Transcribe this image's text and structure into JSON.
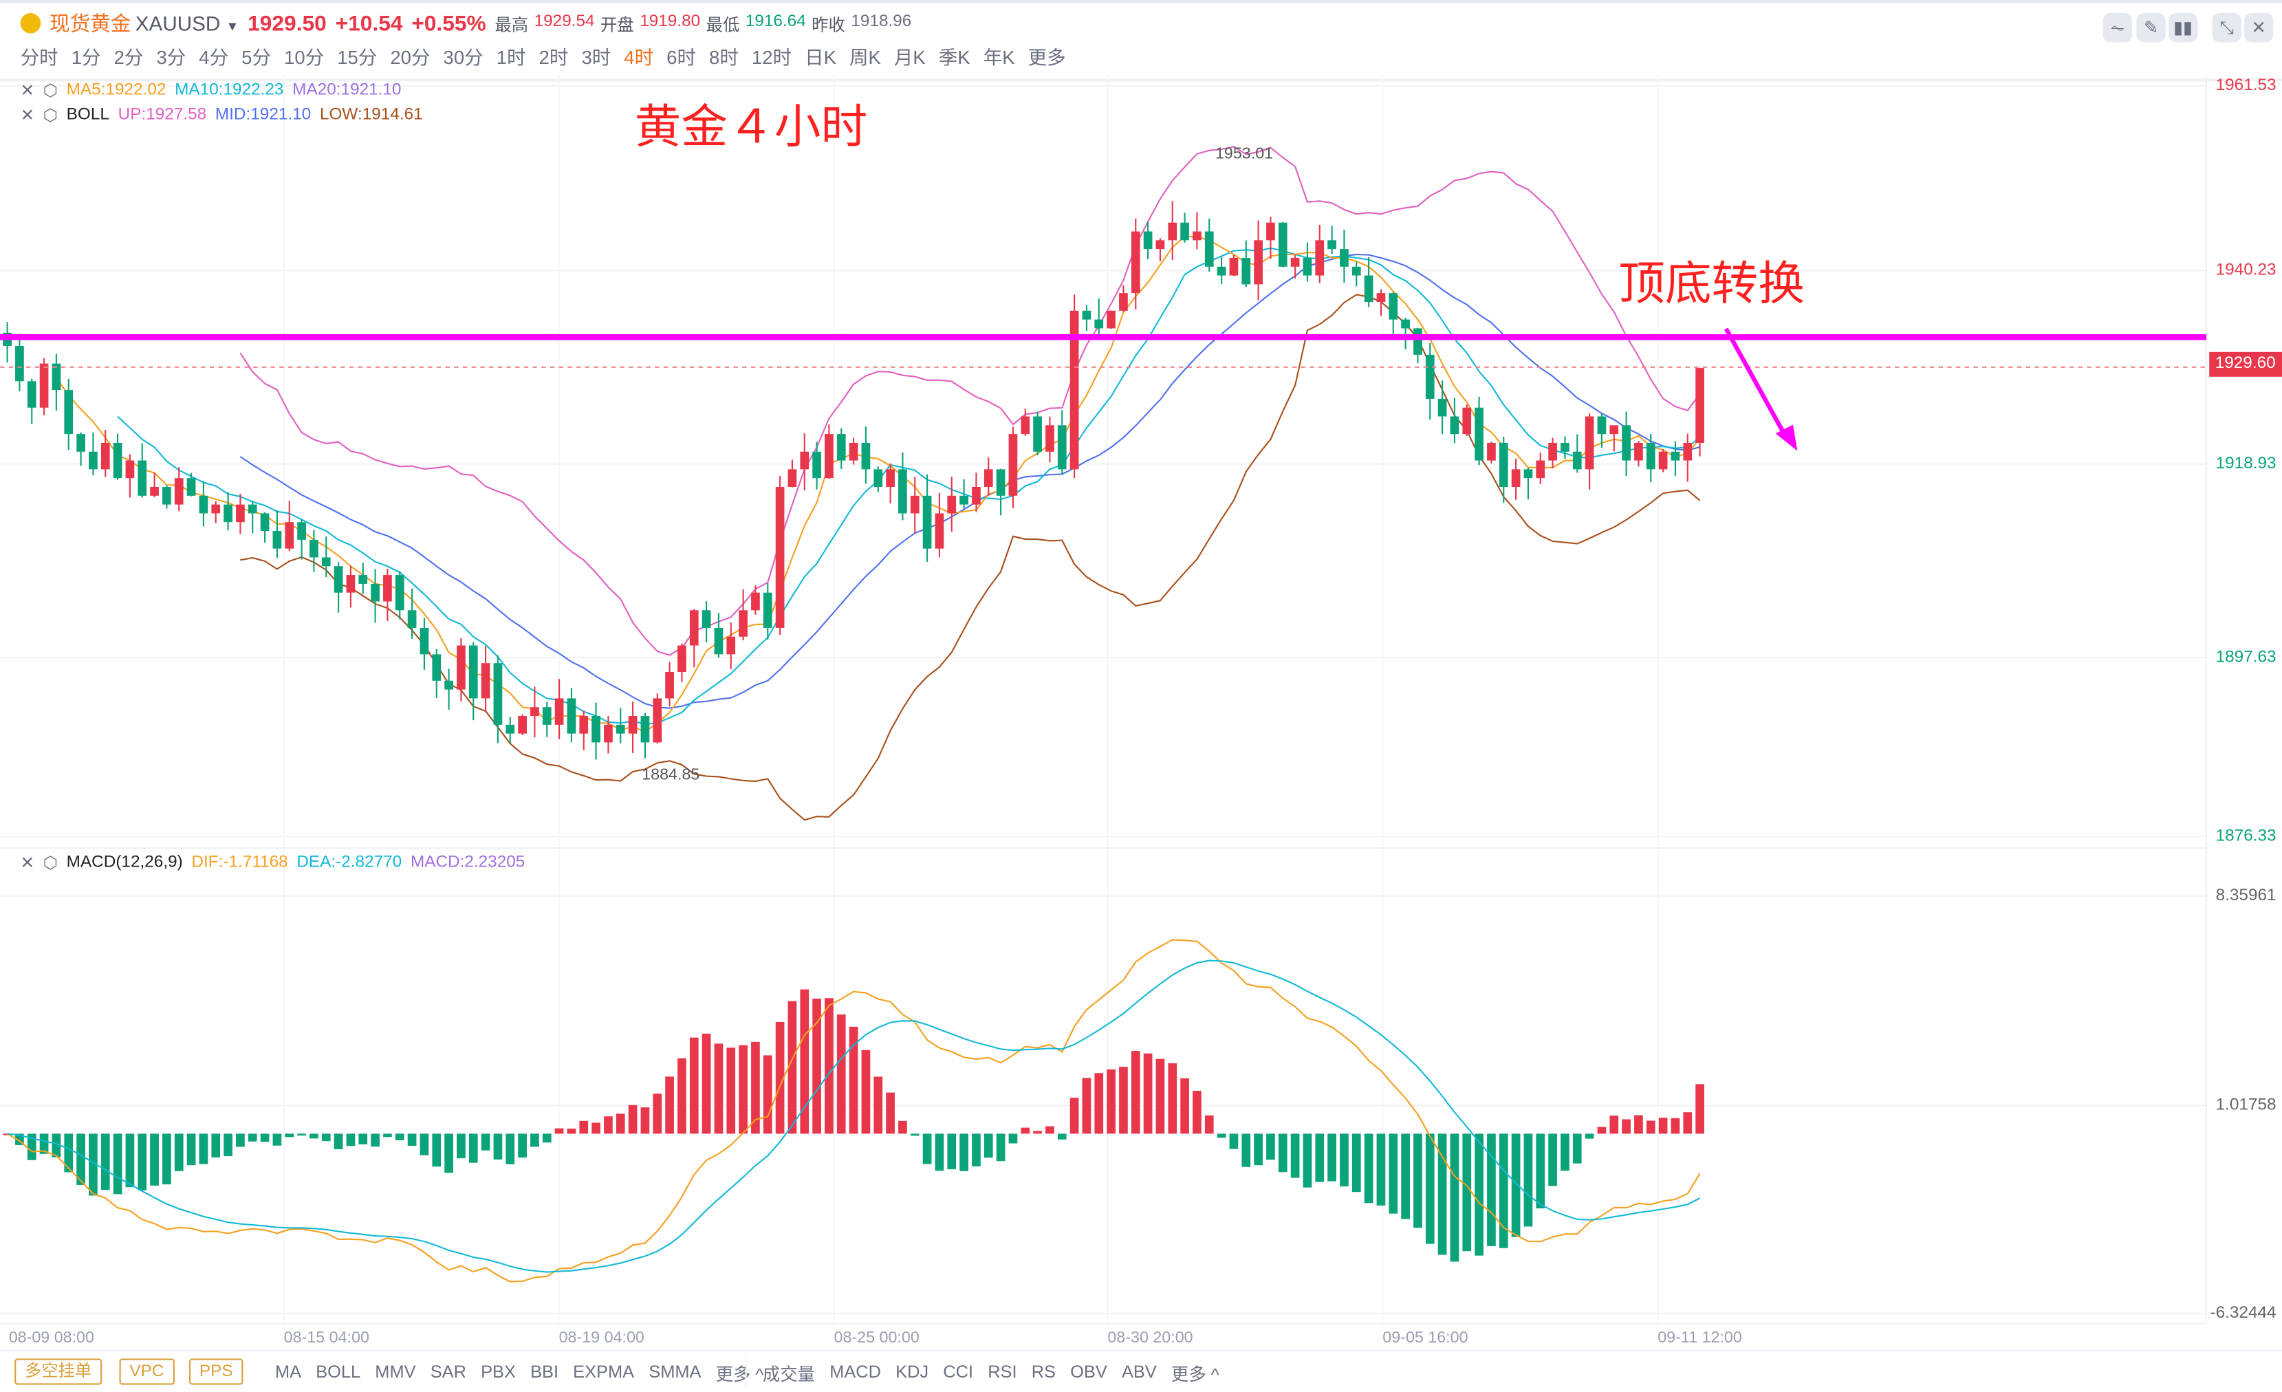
{
  "header": {
    "name": "现货黄金",
    "symbol": "XAUUSD",
    "price": "1929.50",
    "change": "+10.54",
    "change_pct": "+0.55%",
    "stats": [
      {
        "label": "最高",
        "value": "1929.54",
        "color": "#e8374a"
      },
      {
        "label": "开盘",
        "value": "1919.80",
        "color": "#e8374a"
      },
      {
        "label": "最低",
        "value": "1916.64",
        "color": "#0aa37a"
      },
      {
        "label": "昨收",
        "value": "1918.96",
        "color": "#6b7080"
      }
    ]
  },
  "timeframes": [
    "分时",
    "1分",
    "2分",
    "3分",
    "4分",
    "5分",
    "10分",
    "15分",
    "20分",
    "30分",
    "1时",
    "2时",
    "3时",
    "4时",
    "6时",
    "8时",
    "12时",
    "日K",
    "周K",
    "月K",
    "季K",
    "年K",
    "更多"
  ],
  "active_timeframe": "4时",
  "toolbar_icons": [
    "indicator-line-icon",
    "pencil-icon",
    "candlestick-icon",
    "collapse-icon",
    "close-icon"
  ],
  "legend": {
    "ma": [
      {
        "t": "MA5:1922.02",
        "c": "#f5a020"
      },
      {
        "t": "MA10:1922.23",
        "c": "#12b9d6"
      },
      {
        "t": "MA20:1921.10",
        "c": "#a070e0"
      }
    ],
    "boll_label": "BOLL",
    "boll": [
      {
        "t": "UP:1927.58",
        "c": "#e060c0"
      },
      {
        "t": "MID:1921.10",
        "c": "#5070f0"
      },
      {
        "t": "LOW:1914.61",
        "c": "#a8501c"
      }
    ],
    "macd_label": "MACD(12,26,9)",
    "macd": [
      {
        "t": "DIF:-1.71168",
        "c": "#f5a020"
      },
      {
        "t": "DEA:-2.82770",
        "c": "#12b9d6"
      },
      {
        "t": "MACD:2.23205",
        "c": "#a070e0"
      }
    ]
  },
  "annotations": {
    "title": "黄金４小时",
    "note": "顶底转换",
    "high_mark": "1953.01",
    "low_mark": "1884.85",
    "line_color": "#ff00ff"
  },
  "price_axis": [
    "1961.53",
    "1940.23",
    "1918.93",
    "1897.63",
    "1876.33"
  ],
  "current_price_label": "1929.60",
  "macd_axis": [
    "8.35961",
    "1.01758",
    "-6.32444"
  ],
  "time_axis": [
    "08-09 08:00",
    "08-15 04:00",
    "08-19 04:00",
    "08-25 00:00",
    "08-30 20:00",
    "09-05 16:00",
    "09-11 12:00"
  ],
  "footer": {
    "order_buttons": [
      "多空挂单",
      "VPC",
      "PPS"
    ],
    "main_indicators": [
      "MA",
      "BOLL",
      "MMV",
      "SAR",
      "PBX",
      "BBI",
      "EXPMA",
      "SMMA",
      "更多 ^"
    ],
    "sub_indicators": [
      "成交量",
      "MACD",
      "KDJ",
      "CCI",
      "RSI",
      "RS",
      "OBV",
      "ABV",
      "更多 ^"
    ]
  },
  "chart_data": {
    "type": "candlestick",
    "up_color": "#e8374a",
    "down_color": "#0aa37a",
    "support_resistance_level": 1933,
    "closes": [
      1932,
      1928,
      1925,
      1930,
      1927,
      1922,
      1920,
      1918,
      1921,
      1917,
      1919,
      1915,
      1916,
      1914,
      1917,
      1915,
      1913,
      1914,
      1912,
      1914,
      1913,
      1911,
      1909,
      1912,
      1910,
      1908,
      1907,
      1904,
      1906,
      1905,
      1903,
      1906,
      1902,
      1900,
      1897,
      1894,
      1893,
      1898,
      1892,
      1896,
      1889,
      1888,
      1890,
      1891,
      1889,
      1892,
      1888,
      1890,
      1887,
      1889,
      1888,
      1890,
      1887,
      1892,
      1895,
      1898,
      1902,
      1900,
      1897,
      1899,
      1902,
      1904,
      1900,
      1916,
      1918,
      1920,
      1917,
      1922,
      1919,
      1921,
      1918,
      1916,
      1918,
      1913,
      1915,
      1909,
      1913,
      1915,
      1914,
      1916,
      1918,
      1915,
      1922,
      1924,
      1920,
      1923,
      1918,
      1936,
      1935,
      1934,
      1936,
      1938,
      1945,
      1943,
      1944,
      1946,
      1944,
      1945,
      1941,
      1940,
      1942,
      1939,
      1944,
      1946,
      1941,
      1942,
      1940,
      1944,
      1943,
      1941,
      1940,
      1937,
      1938,
      1935,
      1934,
      1931,
      1926,
      1924,
      1922,
      1925,
      1919,
      1921,
      1916,
      1918,
      1917,
      1919,
      1921,
      1920,
      1918,
      1924,
      1922,
      1923,
      1919,
      1921,
      1918,
      1920,
      1919,
      1921,
      1929.5
    ],
    "price_range": [
      1876.33,
      1961.53
    ],
    "macd_range": [
      -6.32444,
      8.35961
    ]
  }
}
